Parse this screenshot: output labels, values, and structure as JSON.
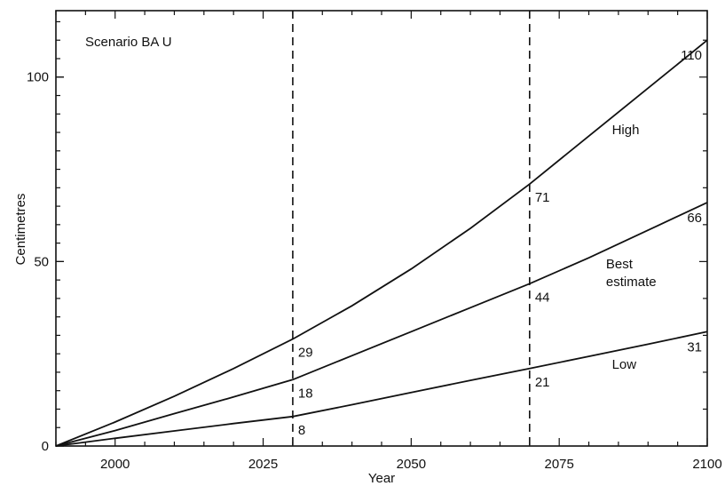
{
  "chart_data": {
    "type": "line",
    "annotation": "Scenario BA U",
    "xlabel": "Year",
    "ylabel": "Centimetres",
    "xlim": [
      1990,
      2100
    ],
    "ylim": [
      0,
      118
    ],
    "x_ticks": [
      2000,
      2025,
      2050,
      2075,
      2100
    ],
    "y_ticks": [
      0,
      50,
      100
    ],
    "grid": false,
    "reference_lines_x": [
      2030,
      2070
    ],
    "series": [
      {
        "name": "High",
        "x": [
          1990,
          2000,
          2010,
          2020,
          2030,
          2040,
          2050,
          2060,
          2070,
          2080,
          2090,
          2100
        ],
        "y": [
          0,
          6.5,
          13.5,
          21,
          29,
          38,
          48,
          59,
          71,
          84,
          97,
          110
        ],
        "labels": [
          {
            "x": 2030,
            "text": "29"
          },
          {
            "x": 2070,
            "text": "71"
          },
          {
            "x": 2100,
            "text": "110"
          }
        ]
      },
      {
        "name": "Best estimate",
        "x": [
          1990,
          2000,
          2010,
          2020,
          2030,
          2040,
          2050,
          2060,
          2070,
          2080,
          2090,
          2100
        ],
        "y": [
          0,
          4.2,
          8.8,
          13.3,
          18,
          24.5,
          31,
          37.5,
          44,
          51,
          58.5,
          66
        ],
        "labels": [
          {
            "x": 2030,
            "text": "18"
          },
          {
            "x": 2070,
            "text": "44"
          },
          {
            "x": 2100,
            "text": "66"
          }
        ]
      },
      {
        "name": "Low",
        "x": [
          1990,
          2000,
          2010,
          2020,
          2030,
          2040,
          2050,
          2060,
          2070,
          2080,
          2090,
          2100
        ],
        "y": [
          0,
          2.1,
          4.1,
          6.1,
          8,
          11.2,
          14.5,
          17.8,
          21,
          24.3,
          27.6,
          31
        ],
        "labels": [
          {
            "x": 2030,
            "text": "8"
          },
          {
            "x": 2070,
            "text": "21"
          },
          {
            "x": 2100,
            "text": "31"
          }
        ]
      }
    ]
  }
}
